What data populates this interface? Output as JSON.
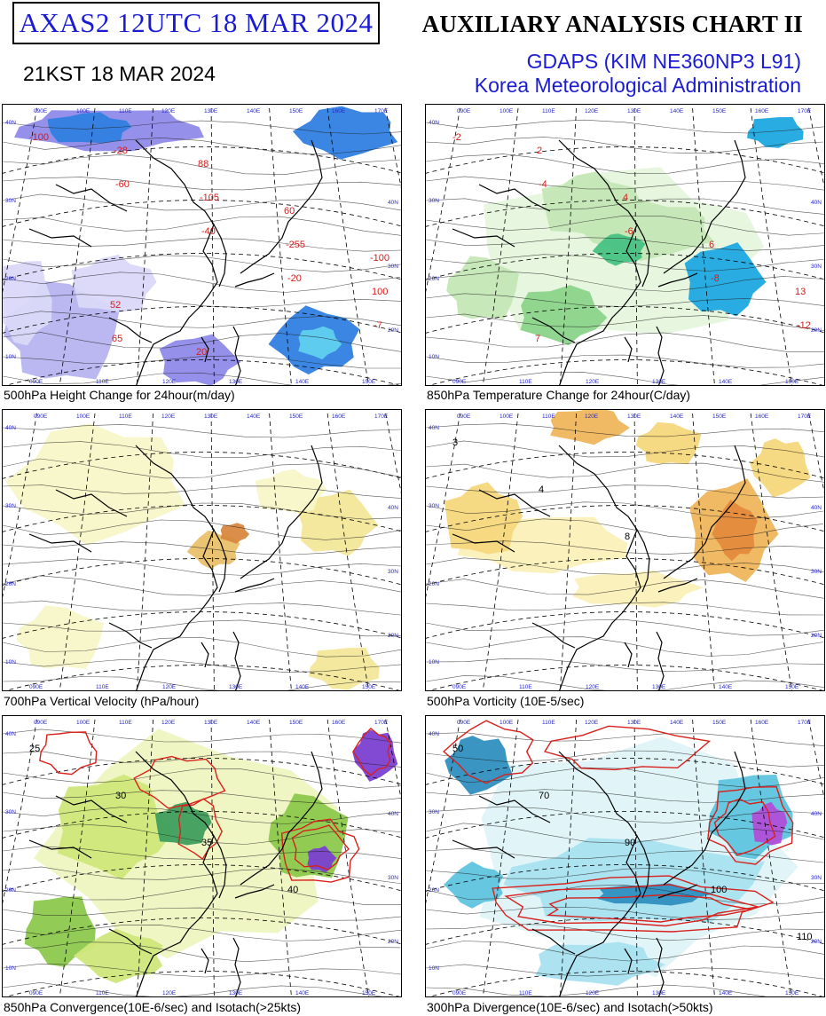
{
  "header": {
    "product_code": "AXAS2  12UTC 18 MAR 2024",
    "local_time": "21KST 18 MAR 2024",
    "chart_title": "AUXILIARY ANALYSIS CHART II",
    "model": "GDAPS (KIM NE360NP3 L91)",
    "agency": "Korea Meteorological Administration"
  },
  "panels": [
    {
      "caption": "500hPa Height Change for 24hour(m/day)",
      "variant": "height",
      "fill_colors": [
        "#2f7fe0",
        "#5fd0ee",
        "#8f8ae8",
        "#b7b3f0",
        "#dad8f8"
      ],
      "contour_labels": [
        "-100",
        "-60",
        "-40",
        "-20",
        "-7",
        "-28",
        "-105",
        "-255",
        "100",
        "65",
        "88",
        "60",
        "-100",
        "52",
        "20"
      ]
    },
    {
      "caption": "850hPa Temperature Change for 24hour(C/day)",
      "variant": "temperature",
      "fill_colors": [
        "#1da8e0",
        "#47c283",
        "#8bd48a",
        "#c4e7b5",
        "#e6f5dd"
      ],
      "contour_labels": [
        "-2",
        "-4",
        "-6",
        "-8",
        "-12",
        "2",
        "4",
        "6",
        "13",
        "7"
      ]
    },
    {
      "caption": "700hPa Vertical Velocity (hPa/hour)",
      "variant": "velocity",
      "fill_colors": [
        "#f8f5c8",
        "#f3e79a",
        "#e9c16a",
        "#d8883f",
        "#b55e27"
      ],
      "contour_labels": []
    },
    {
      "caption": "500hPa Vorticity (10E-5/sec)",
      "variant": "vorticity",
      "fill_colors": [
        "#fbf0b8",
        "#f5d77c",
        "#efb55c",
        "#e48a3c",
        "#c75b22"
      ],
      "contour_labels": [
        "3",
        "4",
        "8"
      ]
    },
    {
      "caption": "850hPa Convergence(10E-6/sec) and Isotach(>25kts)",
      "variant": "convergence",
      "fill_colors": [
        "#eef6c0",
        "#cfe77b",
        "#8cc84c",
        "#3e9e5e",
        "#7b3fd0"
      ],
      "contour_labels": [
        "25",
        "30",
        "35",
        "40"
      ]
    },
    {
      "caption": "300hPa Divergence(10E-6/sec) and Isotach(>50kts)",
      "variant": "divergence",
      "fill_colors": [
        "#dff4f8",
        "#a9e2ef",
        "#5fc4de",
        "#2f8fc0",
        "#b04fd8"
      ],
      "contour_labels": [
        "50",
        "70",
        "90",
        "100",
        "110"
      ]
    }
  ],
  "map_labels": {
    "top_longitudes": [
      "090E",
      "100E",
      "110E",
      "120E",
      "130E",
      "140E",
      "150E",
      "160E",
      "170E"
    ],
    "bottom_longitudes": [
      "090E",
      "110E",
      "120E",
      "130E",
      "140E",
      "150E"
    ],
    "left_latitudes": [
      "40N",
      "30N",
      "20N",
      "10N"
    ],
    "right_latitudes": [
      "40N",
      "30N",
      "20N",
      "10N"
    ]
  },
  "colors": {
    "accent_blue": "#1b1bd4",
    "contour_red": "#d8201c",
    "lat_lon_label": "#2727c9",
    "coast_line": "#000000"
  }
}
